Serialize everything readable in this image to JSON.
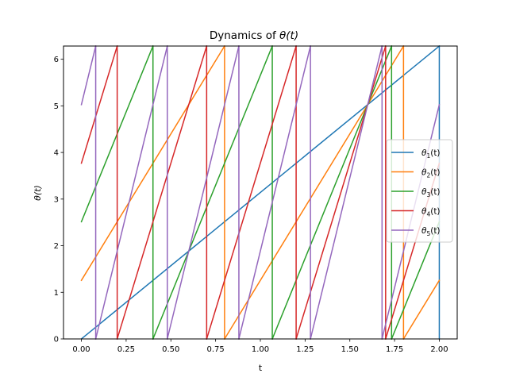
{
  "chart_data": {
    "type": "line",
    "title_pre": "Dynamics of ",
    "title_math": "θ(t)",
    "xlabel": "t",
    "ylabel": "θ(t)",
    "xlim": [
      -0.1,
      2.1
    ],
    "ylim": [
      0,
      6.2832
    ],
    "xticks": [
      "0.00",
      "0.25",
      "0.50",
      "0.75",
      "1.00",
      "1.25",
      "1.50",
      "1.75",
      "2.00"
    ],
    "yticks": [
      "0",
      "1",
      "2",
      "3",
      "4",
      "5",
      "6"
    ],
    "grid": false,
    "legend_position": "center-right",
    "series": [
      {
        "name": "θ1(t)",
        "base": "θ",
        "sub": "1",
        "suffix": "(t)",
        "color": "#1f77b4",
        "segments": [
          [
            [
              0.0,
              0.0
            ],
            [
              2.0,
              6.2832
            ]
          ],
          [
            [
              2.0,
              6.2832
            ],
            [
              2.0,
              0.0
            ]
          ]
        ]
      },
      {
        "name": "θ2(t)",
        "base": "θ",
        "sub": "2",
        "suffix": "(t)",
        "color": "#ff7f0e",
        "segments": [
          [
            [
              0.0,
              1.2566
            ],
            [
              0.8,
              6.2832
            ]
          ],
          [
            [
              0.8,
              6.2832
            ],
            [
              0.8,
              0.0
            ]
          ],
          [
            [
              0.8,
              0.0
            ],
            [
              1.8,
              6.2832
            ]
          ],
          [
            [
              1.8,
              6.2832
            ],
            [
              1.8,
              0.0
            ]
          ],
          [
            [
              1.8,
              0.0
            ],
            [
              2.0,
              1.2566
            ]
          ]
        ]
      },
      {
        "name": "θ3(t)",
        "base": "θ",
        "sub": "3",
        "suffix": "(t)",
        "color": "#2ca02c",
        "segments": [
          [
            [
              0.0,
              2.5133
            ],
            [
              0.4,
              6.2832
            ]
          ],
          [
            [
              0.4,
              6.2832
            ],
            [
              0.4,
              0.0
            ]
          ],
          [
            [
              0.4,
              0.0
            ],
            [
              1.0667,
              6.2832
            ]
          ],
          [
            [
              1.0667,
              6.2832
            ],
            [
              1.0667,
              0.0
            ]
          ],
          [
            [
              1.0667,
              0.0
            ],
            [
              1.7333,
              6.2832
            ]
          ],
          [
            [
              1.7333,
              6.2832
            ],
            [
              1.7333,
              0.0
            ]
          ],
          [
            [
              1.7333,
              0.0
            ],
            [
              2.0,
              2.5133
            ]
          ]
        ]
      },
      {
        "name": "θ4(t)",
        "base": "θ",
        "sub": "4",
        "suffix": "(t)",
        "color": "#d62728",
        "segments": [
          [
            [
              0.0,
              3.7699
            ],
            [
              0.2,
              6.2832
            ]
          ],
          [
            [
              0.2,
              6.2832
            ],
            [
              0.2,
              0.0
            ]
          ],
          [
            [
              0.2,
              0.0
            ],
            [
              0.7,
              6.2832
            ]
          ],
          [
            [
              0.7,
              6.2832
            ],
            [
              0.7,
              0.0
            ]
          ],
          [
            [
              0.7,
              0.0
            ],
            [
              1.2,
              6.2832
            ]
          ],
          [
            [
              1.2,
              6.2832
            ],
            [
              1.2,
              0.0
            ]
          ],
          [
            [
              1.2,
              0.0
            ],
            [
              1.7,
              6.2832
            ]
          ],
          [
            [
              1.7,
              6.2832
            ],
            [
              1.7,
              0.0
            ]
          ],
          [
            [
              1.7,
              0.0
            ],
            [
              2.0,
              3.7699
            ]
          ]
        ]
      },
      {
        "name": "θ5(t)",
        "base": "θ",
        "sub": "5",
        "suffix": "(t)",
        "color": "#9467bd",
        "segments": [
          [
            [
              0.0,
              5.0265
            ],
            [
              0.08,
              6.2832
            ]
          ],
          [
            [
              0.08,
              6.2832
            ],
            [
              0.08,
              0.0
            ]
          ],
          [
            [
              0.08,
              0.0
            ],
            [
              0.48,
              6.2832
            ]
          ],
          [
            [
              0.48,
              6.2832
            ],
            [
              0.48,
              0.0
            ]
          ],
          [
            [
              0.48,
              0.0
            ],
            [
              0.88,
              6.2832
            ]
          ],
          [
            [
              0.88,
              6.2832
            ],
            [
              0.88,
              0.0
            ]
          ],
          [
            [
              0.88,
              0.0
            ],
            [
              1.28,
              6.2832
            ]
          ],
          [
            [
              1.28,
              6.2832
            ],
            [
              1.28,
              0.0
            ]
          ],
          [
            [
              1.28,
              0.0
            ],
            [
              1.68,
              6.2832
            ]
          ],
          [
            [
              1.68,
              6.2832
            ],
            [
              1.68,
              0.0
            ]
          ],
          [
            [
              1.68,
              0.0
            ],
            [
              2.0,
              5.0265
            ]
          ]
        ]
      }
    ]
  }
}
